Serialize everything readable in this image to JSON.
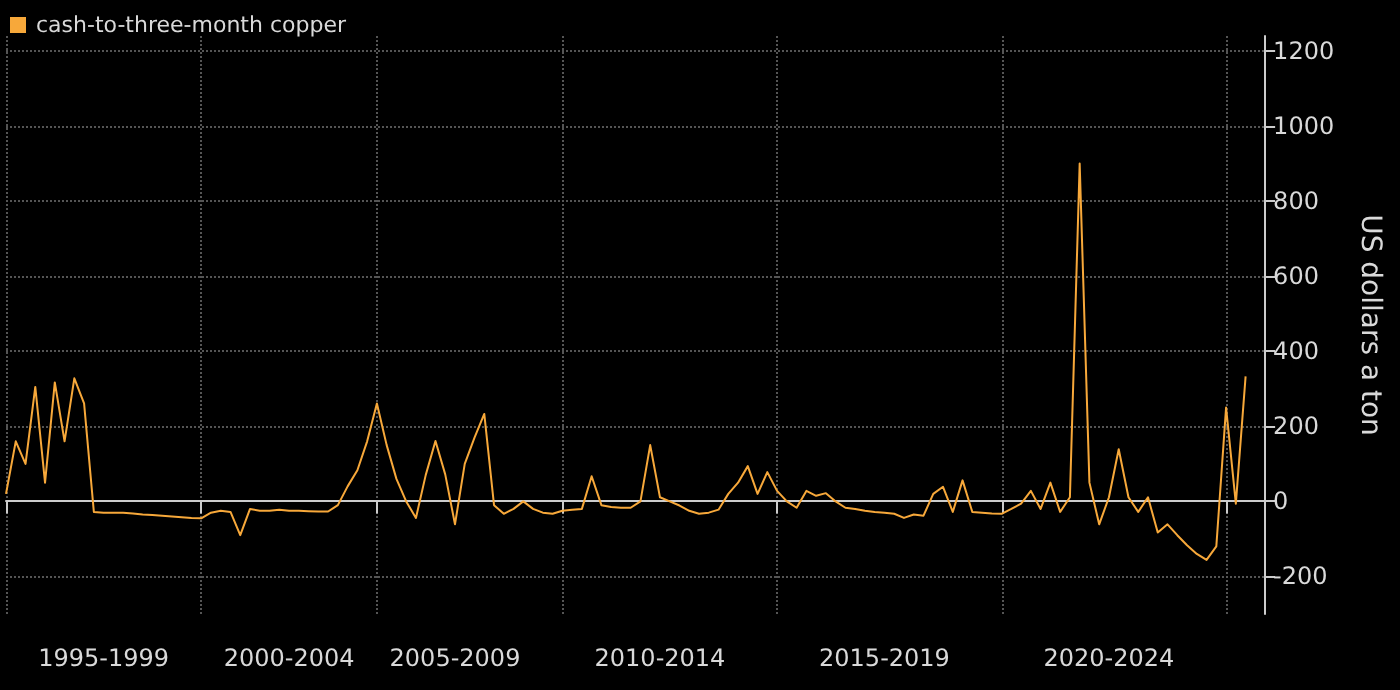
{
  "chart_data": {
    "type": "line",
    "ylabel": "US dollars a ton",
    "categories": [
      null,
      null,
      null,
      null,
      null,
      null,
      null,
      null,
      null,
      null,
      "1995-1999",
      null,
      null,
      null,
      null,
      null,
      null,
      null,
      null,
      null,
      null,
      null,
      null,
      null,
      null,
      null,
      null,
      null,
      null,
      "2000-2004",
      null,
      null,
      null,
      null,
      null,
      null,
      null,
      null,
      null,
      null,
      null,
      null,
      null,
      null,
      null,
      null,
      "2005-2009",
      null,
      null,
      null,
      null,
      null,
      null,
      null,
      null,
      null,
      null,
      null,
      null,
      null,
      null,
      null,
      null,
      null,
      null,
      null,
      null,
      "2010-2014",
      null,
      null,
      null,
      null,
      null,
      null,
      null,
      null,
      null,
      null,
      null,
      null,
      null,
      null,
      null,
      null,
      null,
      null,
      null,
      null,
      null,
      null,
      "2015-2019",
      null,
      null,
      null,
      null,
      null,
      null,
      null,
      null,
      null,
      null,
      null,
      null,
      null,
      null,
      null,
      null,
      null,
      null,
      null,
      null,
      null,
      null,
      "2020-2024",
      null,
      null,
      null,
      null,
      null,
      null,
      null,
      null,
      null,
      null,
      null,
      null,
      null,
      null,
      null,
      null
    ],
    "series": [
      {
        "name": "cash-to-three-month copper",
        "color": "#f7a83a",
        "values": [
          20,
          160,
          100,
          305,
          50,
          317,
          160,
          328,
          261,
          -28,
          -30,
          -30,
          -30,
          -32,
          -35,
          -36,
          -38,
          -40,
          -42,
          -44,
          -45,
          -30,
          -25,
          -28,
          -90,
          -20,
          -25,
          -25,
          -22,
          -25,
          -25,
          -26,
          -27,
          -27,
          -10,
          40,
          83,
          160,
          261,
          150,
          60,
          0,
          -44,
          70,
          161,
          72,
          -61,
          100,
          170,
          233,
          -10,
          -33,
          -20,
          0,
          -20,
          -30,
          -33,
          -25,
          -22,
          -20,
          67,
          -10,
          -15,
          -17,
          -17,
          0,
          150,
          11,
          0,
          -11,
          -25,
          -33,
          -30,
          -22,
          20,
          50,
          94,
          20,
          78,
          28,
          0,
          -17,
          28,
          15,
          22,
          0,
          -17,
          -20,
          -25,
          -28,
          -30,
          -33,
          -44,
          -35,
          -38,
          20,
          39,
          -28,
          56,
          -28,
          -30,
          -32,
          -33,
          -20,
          -6,
          28,
          -20,
          50,
          -28,
          11,
          900,
          50,
          -61,
          11,
          139,
          11,
          -28,
          11,
          -83,
          -61,
          -90,
          -117,
          -140,
          -156,
          -120,
          250,
          -6,
          333,
          null,
          null
        ]
      }
    ],
    "ylim": [
      -300,
      1240
    ],
    "yticks": [
      -200,
      0,
      200,
      400,
      600,
      800,
      1000,
      1200
    ],
    "grid": true,
    "legend": "top left",
    "marker": "none",
    "line_style": "solid"
  }
}
